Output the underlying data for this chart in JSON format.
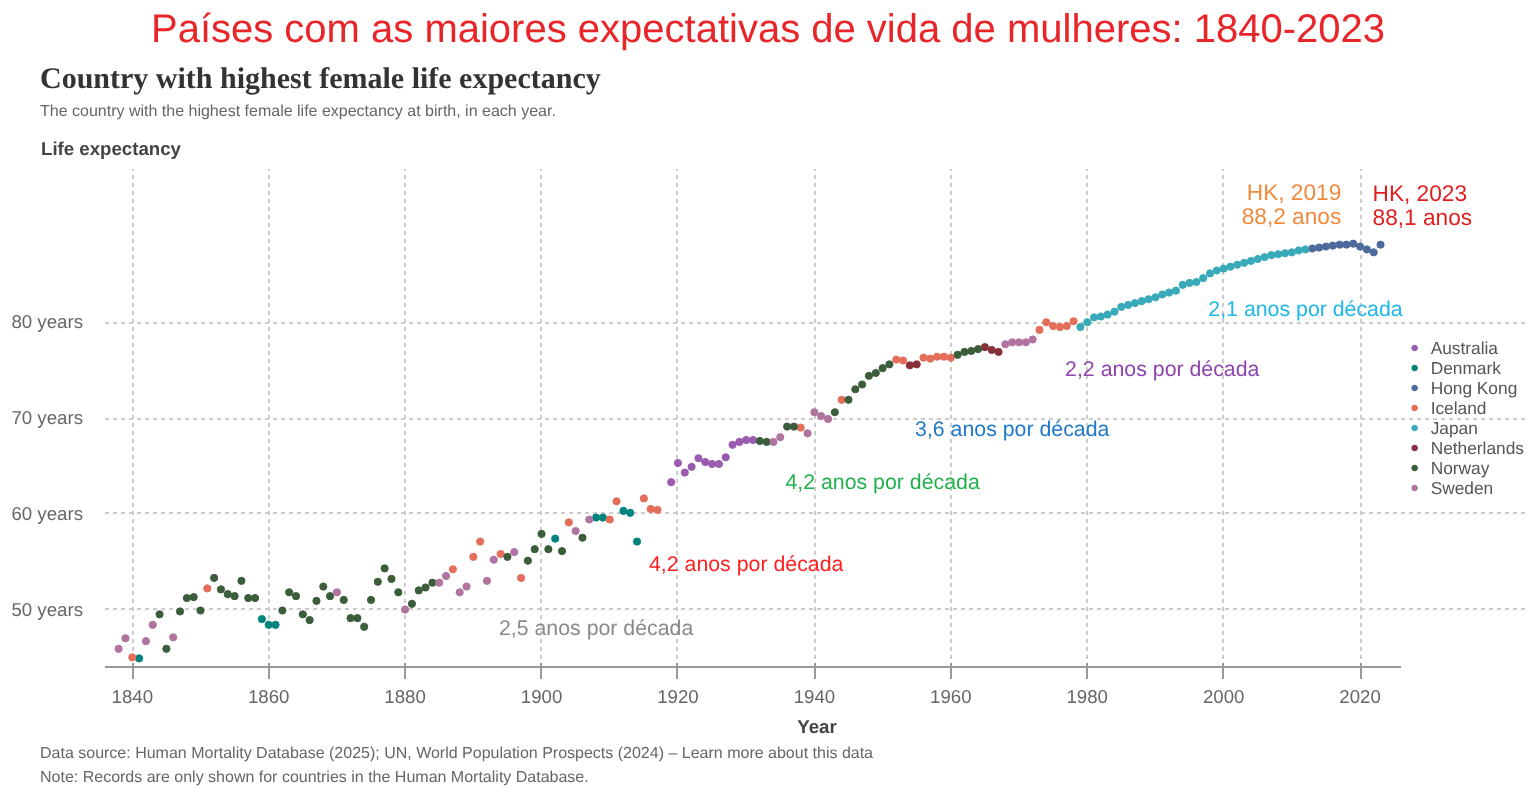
{
  "chart_data": {
    "type": "scatter",
    "title": "Países com as maiores expectativas de vida de mulheres: 1840-2023",
    "subtitle": "Country with highest female life expectancy",
    "xlabel": "Year",
    "ylabel": "Life expectancy",
    "xlim": [
      1836,
      2026
    ],
    "xticks": [
      1840,
      1860,
      1880,
      1900,
      1920,
      1940,
      1960,
      1980,
      2000,
      2020
    ],
    "ylim": [
      44,
      96
    ],
    "yticks": [
      {
        "value": 50,
        "label": "50 years"
      },
      {
        "value": 60,
        "label": "60 years"
      },
      {
        "value": 70,
        "label": "70 years"
      },
      {
        "value": 80,
        "label": "80 years"
      }
    ],
    "grid": true,
    "legend": "right",
    "marker": "circle",
    "series": [
      {
        "name": "Australia",
        "color": "#9a5bb0",
        "x": [
          1919,
          1920,
          1921,
          1922,
          1923,
          1924,
          1925,
          1926,
          1927,
          1928,
          1929,
          1930,
          1931
        ],
        "values": [
          63.3,
          65.3,
          64.3,
          64.9,
          65.8,
          65.4,
          65.2,
          65.2,
          65.9,
          67.2,
          67.5,
          67.7,
          67.7
        ]
      },
      {
        "name": "Denmark",
        "color": "#00847e",
        "x": [
          1841,
          1859,
          1860,
          1861,
          1902,
          1908,
          1909,
          1912,
          1913,
          1914
        ],
        "values": [
          44.9,
          49.0,
          48.4,
          48.4,
          57.4,
          59.6,
          59.6,
          60.3,
          60.1,
          57.1
        ]
      },
      {
        "name": "Hong Kong",
        "color": "#4c6a9c",
        "x": [
          2013,
          2014,
          2015,
          2016,
          2017,
          2018,
          2019,
          2020,
          2021,
          2022,
          2023
        ],
        "values": [
          87.7,
          87.8,
          87.9,
          88.0,
          88.1,
          88.1,
          88.2,
          87.9,
          87.6,
          87.3,
          88.1
        ]
      },
      {
        "name": "Iceland",
        "color": "#e56e5a",
        "x": [
          1840,
          1851,
          1887,
          1890,
          1891,
          1894,
          1897,
          1904,
          1910,
          1911,
          1915,
          1916,
          1917,
          1938,
          1944,
          1952,
          1953,
          1956,
          1957,
          1958,
          1959,
          1960,
          1973,
          1974,
          1975,
          1976,
          1977,
          1978
        ],
        "values": [
          45.0,
          52.2,
          54.2,
          55.5,
          57.1,
          55.8,
          53.3,
          59.1,
          59.4,
          61.3,
          61.6,
          60.5,
          60.4,
          69.0,
          71.9,
          76.1,
          76.0,
          76.3,
          76.2,
          76.4,
          76.4,
          76.3,
          79.2,
          80.0,
          79.6,
          79.5,
          79.6,
          80.1
        ]
      },
      {
        "name": "Japan",
        "color": "#38aaba",
        "x": [
          1979,
          1980,
          1981,
          1982,
          1983,
          1984,
          1985,
          1986,
          1987,
          1988,
          1989,
          1990,
          1991,
          1992,
          1993,
          1994,
          1995,
          1996,
          1997,
          1998,
          1999,
          2000,
          2001,
          2002,
          2003,
          2004,
          2005,
          2006,
          2007,
          2008,
          2009,
          2010,
          2011,
          2012
        ],
        "values": [
          79.5,
          80.0,
          80.5,
          80.6,
          80.8,
          81.1,
          81.6,
          81.8,
          82.0,
          82.2,
          82.4,
          82.6,
          82.9,
          83.1,
          83.3,
          83.9,
          84.1,
          84.2,
          84.6,
          85.1,
          85.4,
          85.6,
          85.8,
          86.0,
          86.2,
          86.4,
          86.6,
          86.8,
          87.0,
          87.1,
          87.2,
          87.3,
          87.5,
          87.6
        ]
      },
      {
        "name": "Netherlands",
        "color": "#883039",
        "x": [
          1954,
          1955,
          1965,
          1966,
          1967
        ],
        "values": [
          75.5,
          75.6,
          77.4,
          77.1,
          76.9
        ]
      },
      {
        "name": "Norway",
        "color": "#3b5d3b",
        "x": [
          1844,
          1845,
          1847,
          1848,
          1849,
          1850,
          1852,
          1853,
          1854,
          1855,
          1856,
          1857,
          1858,
          1862,
          1863,
          1864,
          1865,
          1866,
          1867,
          1868,
          1869,
          1871,
          1872,
          1873,
          1874,
          1875,
          1876,
          1877,
          1878,
          1879,
          1881,
          1882,
          1883,
          1884,
          1895,
          1898,
          1899,
          1900,
          1901,
          1903,
          1906,
          1932,
          1933,
          1936,
          1937,
          1943,
          1945,
          1946,
          1947,
          1948,
          1949,
          1950,
          1951,
          1961,
          1962,
          1963,
          1964
        ],
        "values": [
          49.5,
          45.9,
          49.8,
          51.2,
          51.3,
          49.9,
          53.3,
          52.1,
          51.6,
          51.4,
          53.0,
          51.2,
          51.2,
          49.9,
          51.8,
          51.4,
          49.5,
          48.9,
          50.9,
          52.4,
          51.4,
          51.0,
          49.1,
          49.1,
          48.2,
          51.0,
          52.9,
          54.3,
          53.2,
          51.8,
          50.6,
          52.0,
          52.3,
          52.8,
          55.5,
          55.1,
          56.3,
          57.9,
          56.3,
          56.1,
          57.5,
          67.6,
          67.5,
          69.1,
          69.1,
          70.6,
          71.9,
          73.0,
          73.5,
          74.4,
          74.7,
          75.2,
          75.6,
          76.6,
          76.9,
          77.0,
          77.2
        ]
      },
      {
        "name": "Sweden",
        "color": "#b0749e",
        "x": [
          1838,
          1839,
          1842,
          1843,
          1846,
          1870,
          1880,
          1885,
          1886,
          1888,
          1889,
          1892,
          1893,
          1896,
          1905,
          1907,
          1934,
          1935,
          1939,
          1940,
          1941,
          1942,
          1968,
          1969,
          1970,
          1971,
          1972
        ],
        "values": [
          45.9,
          47.0,
          46.7,
          48.4,
          47.1,
          51.8,
          50.0,
          52.8,
          53.5,
          51.8,
          52.4,
          53.0,
          55.2,
          56.0,
          58.2,
          59.4,
          67.5,
          68.0,
          68.4,
          70.6,
          70.2,
          69.9,
          77.7,
          77.9,
          77.9,
          77.9,
          78.2
        ]
      }
    ],
    "annotations": [
      "The country with the highest female life expectancy at birth, in each year.",
      "HK, 2019\n88,2 anos",
      "HK, 2023\n88,1 anos",
      "2,5 anos por década",
      "4,2 anos por década",
      "4,2 anos por década",
      "3,6 anos por década",
      "2,2 anos por década",
      "2,1 anos por década",
      "Data source: Human Mortality Database (2025); UN, World Population Prospects (2024) – Learn more about this data",
      "Note: Records are only shown for countries in the Human Mortality Database."
    ]
  }
}
